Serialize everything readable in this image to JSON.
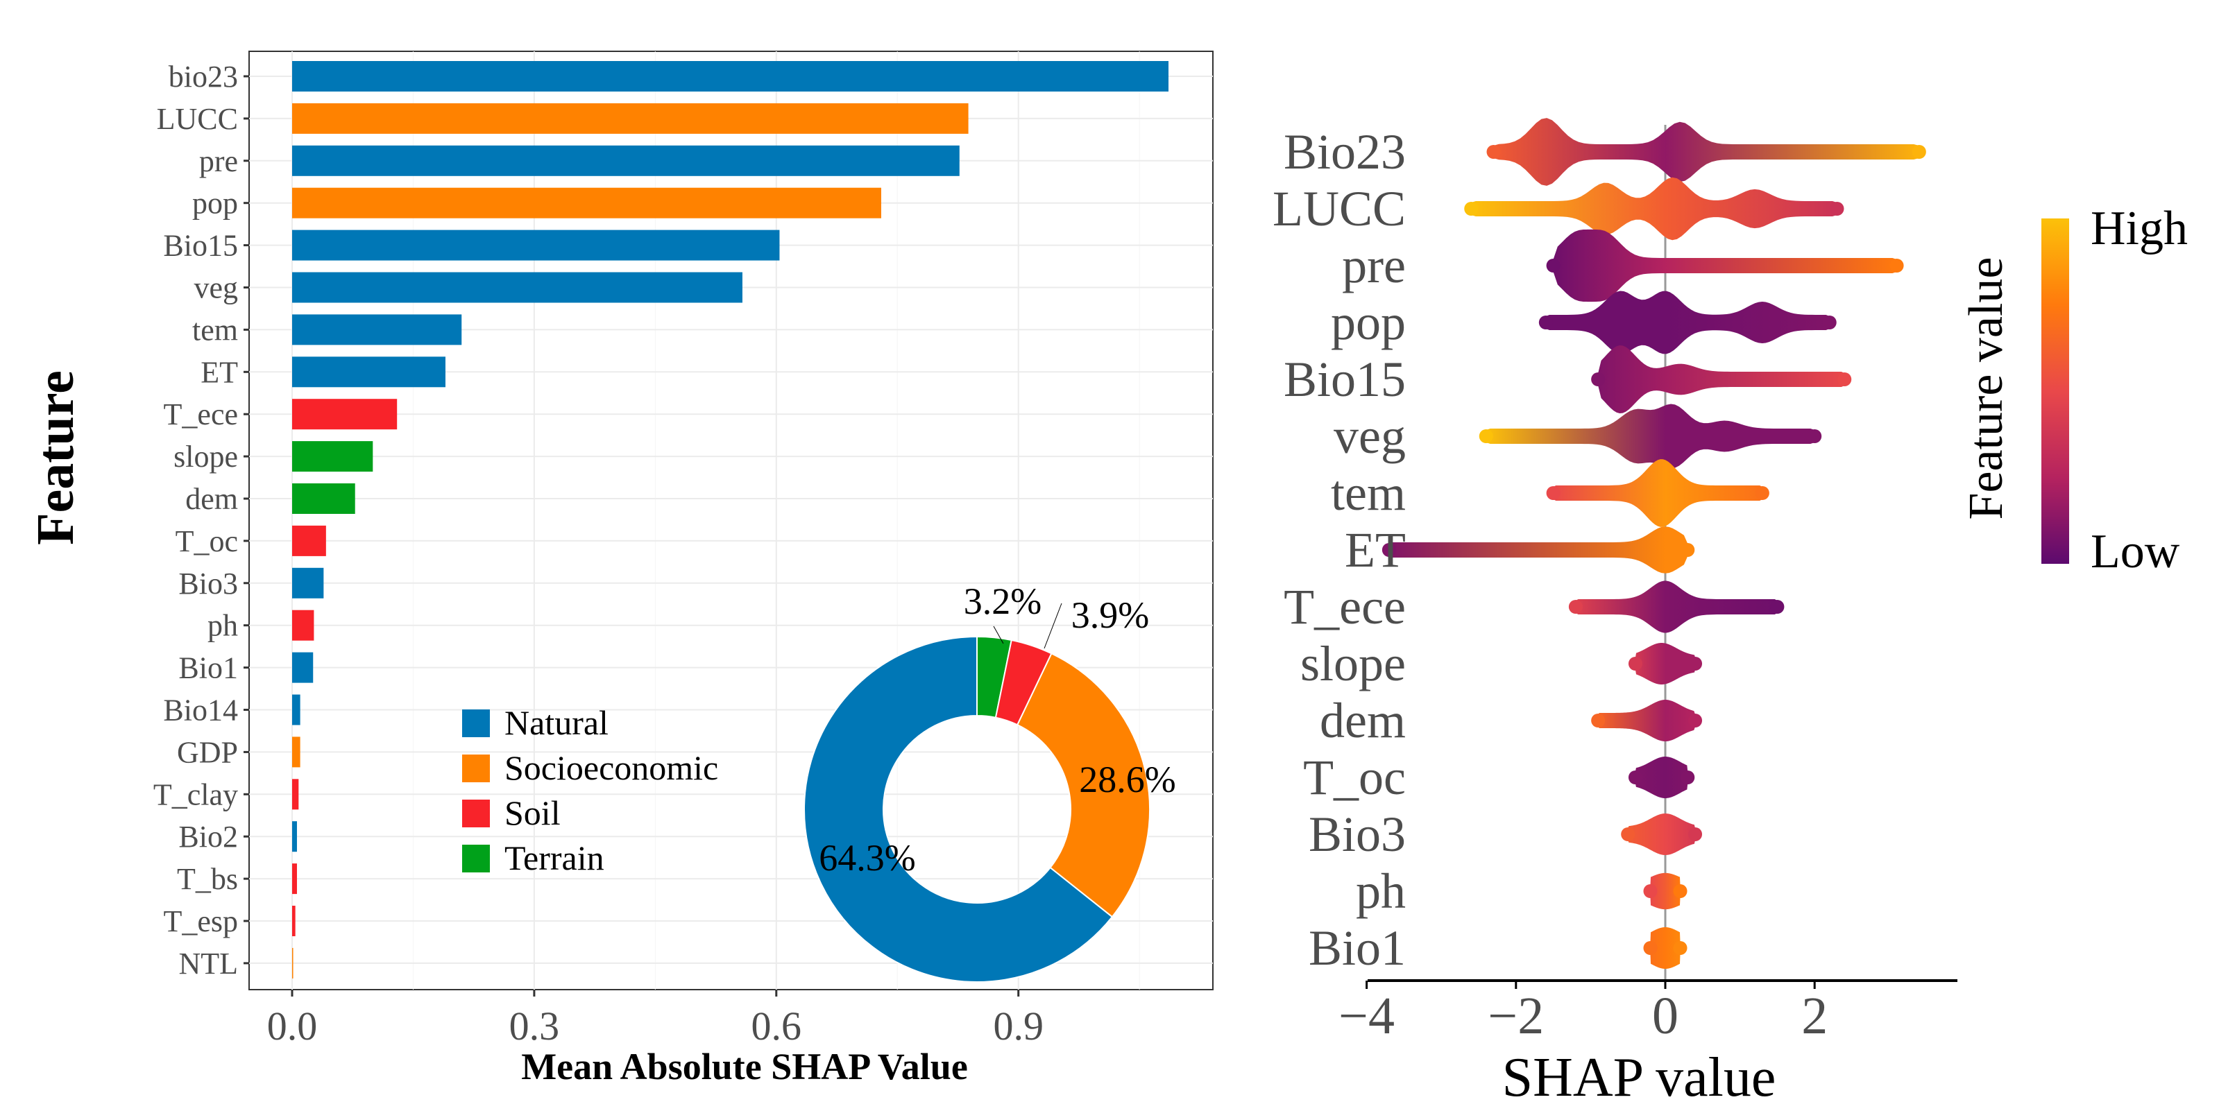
{
  "chart_data": [
    {
      "type": "bar",
      "orientation": "horizontal",
      "ylabel": "Feature",
      "xlabel": "Mean Absolute SHAP Value",
      "xlim": [
        -0.06,
        1.12
      ],
      "xticks": [
        "0.0",
        "0.3",
        "0.6",
        "0.9"
      ],
      "xtick_values": [
        0,
        0.3,
        0.6,
        0.9
      ],
      "grid": true,
      "categories": [
        "bio23",
        "LUCC",
        "pre",
        "pop",
        "Bio15",
        "veg",
        "tem",
        "ET",
        "T_ece",
        "slope",
        "dem",
        "T_oc",
        "Bio3",
        "ph",
        "Bio1",
        "Bio14",
        "GDP",
        "T_clay",
        "Bio2",
        "T_bs",
        "T_esp",
        "NTL"
      ],
      "values": [
        1.086,
        0.838,
        0.827,
        0.73,
        0.604,
        0.558,
        0.21,
        0.19,
        0.13,
        0.1,
        0.078,
        0.042,
        0.039,
        0.027,
        0.026,
        0.01,
        0.01,
        0.008,
        0.006,
        0.006,
        0.004,
        0.001
      ],
      "groups": [
        "Natural",
        "Socioeconomic",
        "Natural",
        "Socioeconomic",
        "Natural",
        "Natural",
        "Natural",
        "Natural",
        "Soil",
        "Terrain",
        "Terrain",
        "Soil",
        "Natural",
        "Soil",
        "Natural",
        "Natural",
        "Socioeconomic",
        "Soil",
        "Natural",
        "Soil",
        "Soil",
        "Socioeconomic"
      ],
      "legend": {
        "placement": "bottom-center",
        "entries": [
          {
            "label": "Natural",
            "color": "#0077b6"
          },
          {
            "label": "Socioeconomic",
            "color": "#ff8200"
          },
          {
            "label": "Soil",
            "color": "#f8232a"
          },
          {
            "label": "Terrain",
            "color": "#00a11a"
          }
        ]
      }
    },
    {
      "type": "pie",
      "donut": true,
      "placement": "bottom-right inset",
      "slices": [
        {
          "label": "Terrain",
          "value": 3.2,
          "text": "3.2%",
          "color": "#00a11a"
        },
        {
          "label": "Soil",
          "value": 3.9,
          "text": "3.9%",
          "color": "#f8232a"
        },
        {
          "label": "Socioeconomic",
          "value": 28.6,
          "text": "28.6%",
          "color": "#ff8200"
        },
        {
          "label": "Natural",
          "value": 64.3,
          "text": "64.3%",
          "color": "#0077b6"
        }
      ]
    },
    {
      "type": "scatter",
      "subtype": "beeswarm",
      "xlabel": "SHAP value",
      "xlim": [
        -4.0,
        3.9
      ],
      "xticks": [
        "−4",
        "−2",
        "0",
        "2"
      ],
      "xtick_values": [
        -4,
        -2,
        0,
        2
      ],
      "colorbar": {
        "title": "Feature value",
        "high_label": "High",
        "low_label": "Low",
        "colors": [
          "#5c0a6e",
          "#b5235f",
          "#e9484a",
          "#ff7a0d",
          "#fcc10a"
        ]
      },
      "features": [
        {
          "name": "Bio23",
          "min": -2.3,
          "max": 3.4,
          "color_at_min": 0.6,
          "color_at_zero": 0.15,
          "color_at_max": 0.95,
          "peaks": [
            [
              -1.6,
              1.0
            ],
            [
              0.2,
              0.85
            ]
          ]
        },
        {
          "name": "LUCC",
          "min": -2.6,
          "max": 2.3,
          "color_at_min": 1.0,
          "color_at_zero": 0.6,
          "color_at_max": 0.35,
          "peaks": [
            [
              -0.8,
              0.7
            ],
            [
              0.1,
              0.9
            ],
            [
              1.2,
              0.45
            ]
          ]
        },
        {
          "name": "pre",
          "min": -1.5,
          "max": 3.1,
          "color_at_min": 0.05,
          "color_at_zero": 0.25,
          "color_at_max": 0.75,
          "peaks": [
            [
              -1.2,
              0.9
            ],
            [
              -0.8,
              0.9
            ]
          ]
        },
        {
          "name": "pop",
          "min": -1.6,
          "max": 2.2,
          "color_at_min": 0.05,
          "color_at_zero": 0.05,
          "color_at_max": 0.1,
          "peaks": [
            [
              -0.6,
              0.9
            ],
            [
              0.0,
              0.9
            ],
            [
              1.3,
              0.5
            ]
          ]
        },
        {
          "name": "Bio15",
          "min": -0.9,
          "max": 2.4,
          "color_at_min": 0.1,
          "color_at_zero": 0.2,
          "color_at_max": 0.5,
          "peaks": [
            [
              -0.6,
              1.0
            ],
            [
              0.2,
              0.3
            ]
          ]
        },
        {
          "name": "veg",
          "min": -2.4,
          "max": 2.0,
          "color_at_min": 1.0,
          "color_at_zero": 0.1,
          "color_at_max": 0.1,
          "peaks": [
            [
              -0.4,
              0.7
            ],
            [
              0.1,
              0.9
            ],
            [
              0.8,
              0.3
            ]
          ]
        },
        {
          "name": "tem",
          "min": -1.5,
          "max": 1.3,
          "color_at_min": 0.5,
          "color_at_zero": 0.85,
          "color_at_max": 0.7,
          "peaks": [
            [
              -0.05,
              1.0
            ]
          ]
        },
        {
          "name": "ET",
          "min": -3.7,
          "max": 0.3,
          "color_at_min": 0.1,
          "color_at_zero": 0.8,
          "color_at_max": 0.8,
          "peaks": [
            [
              0.0,
              0.6
            ]
          ]
        },
        {
          "name": "T_ece",
          "min": -1.2,
          "max": 1.5,
          "color_at_min": 0.45,
          "color_at_zero": 0.1,
          "color_at_max": 0.05,
          "peaks": [
            [
              0.0,
              0.7
            ]
          ]
        },
        {
          "name": "slope",
          "min": -0.4,
          "max": 0.4,
          "color_at_min": 0.4,
          "color_at_zero": 0.2,
          "color_at_max": 0.2,
          "peaks": [
            [
              -0.05,
              0.5
            ]
          ]
        },
        {
          "name": "dem",
          "min": -0.9,
          "max": 0.4,
          "color_at_min": 0.65,
          "color_at_zero": 0.2,
          "color_at_max": 0.25,
          "peaks": [
            [
              0.0,
              0.5
            ]
          ]
        },
        {
          "name": "T_oc",
          "min": -0.4,
          "max": 0.3,
          "color_at_min": 0.1,
          "color_at_zero": 0.08,
          "color_at_max": 0.1,
          "peaks": [
            [
              0.0,
              0.5
            ]
          ]
        },
        {
          "name": "Bio3",
          "min": -0.5,
          "max": 0.4,
          "color_at_min": 0.6,
          "color_at_zero": 0.5,
          "color_at_max": 0.4,
          "peaks": [
            [
              0.0,
              0.5
            ]
          ]
        },
        {
          "name": "ph",
          "min": -0.2,
          "max": 0.2,
          "color_at_min": 0.5,
          "color_at_zero": 0.6,
          "color_at_max": 0.75,
          "peaks": [
            [
              0.0,
              0.4
            ]
          ]
        },
        {
          "name": "Bio1",
          "min": -0.2,
          "max": 0.2,
          "color_at_min": 0.7,
          "color_at_zero": 0.75,
          "color_at_max": 0.8,
          "peaks": [
            [
              0.0,
              0.5
            ]
          ]
        }
      ]
    }
  ]
}
